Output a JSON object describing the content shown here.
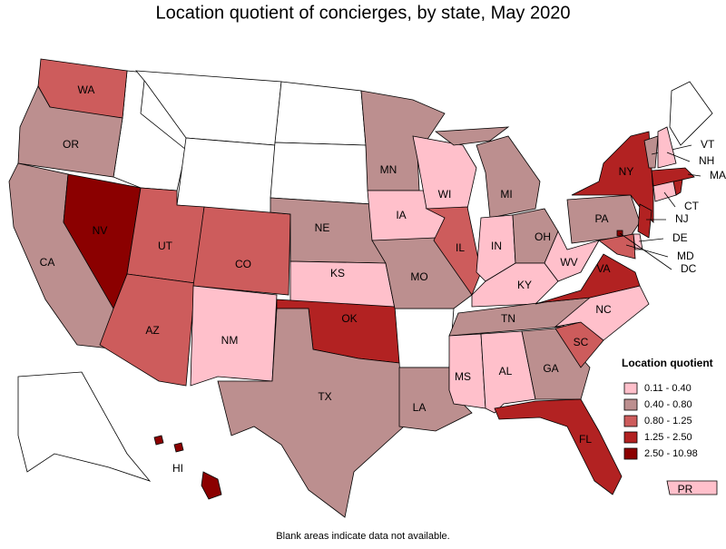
{
  "title": "Location quotient of concierges, by state, May 2020",
  "states": [
    {
      "abbr": "WA",
      "color": "#cd5c5c"
    },
    {
      "abbr": "OR",
      "color": "#bc8f8f"
    },
    {
      "abbr": "CA",
      "color": "#bc8f8f"
    },
    {
      "abbr": "NV",
      "color": "#8b0000"
    },
    {
      "abbr": "UT",
      "color": "#cd5c5c"
    },
    {
      "abbr": "AZ",
      "color": "#cd5c5c"
    },
    {
      "abbr": "CO",
      "color": "#cd5c5c"
    },
    {
      "abbr": "NM",
      "color": "#ffc0cb"
    },
    {
      "abbr": "NE",
      "color": "#bc8f8f"
    },
    {
      "abbr": "KS",
      "color": "#ffc0cb"
    },
    {
      "abbr": "OK",
      "color": "#b22222"
    },
    {
      "abbr": "TX",
      "color": "#bc8f8f"
    },
    {
      "abbr": "MN",
      "color": "#bc8f8f"
    },
    {
      "abbr": "IA",
      "color": "#ffc0cb"
    },
    {
      "abbr": "MO",
      "color": "#bc8f8f"
    },
    {
      "abbr": "LA",
      "color": "#bc8f8f"
    },
    {
      "abbr": "WI",
      "color": "#ffc0cb"
    },
    {
      "abbr": "IL",
      "color": "#cd5c5c"
    },
    {
      "abbr": "MI",
      "color": "#bc8f8f"
    },
    {
      "abbr": "IN",
      "color": "#ffc0cb"
    },
    {
      "abbr": "OH",
      "color": "#bc8f8f"
    },
    {
      "abbr": "KY",
      "color": "#ffc0cb"
    },
    {
      "abbr": "TN",
      "color": "#bc8f8f"
    },
    {
      "abbr": "MS",
      "color": "#ffc0cb"
    },
    {
      "abbr": "AL",
      "color": "#ffc0cb"
    },
    {
      "abbr": "GA",
      "color": "#bc8f8f"
    },
    {
      "abbr": "FL",
      "color": "#b22222"
    },
    {
      "abbr": "SC",
      "color": "#cd5c5c"
    },
    {
      "abbr": "NC",
      "color": "#ffc0cb"
    },
    {
      "abbr": "VA",
      "color": "#b22222"
    },
    {
      "abbr": "WV",
      "color": "#ffc0cb"
    },
    {
      "abbr": "PA",
      "color": "#bc8f8f"
    },
    {
      "abbr": "NY",
      "color": "#b22222"
    },
    {
      "abbr": "VT",
      "color": "#bc8f8f"
    },
    {
      "abbr": "NH",
      "color": "#ffc0cb"
    },
    {
      "abbr": "MA",
      "color": "#b22222"
    },
    {
      "abbr": "CT",
      "color": "#ffc0cb"
    },
    {
      "abbr": "NJ",
      "color": "#b22222"
    },
    {
      "abbr": "DE",
      "color": "#ffc0cb"
    },
    {
      "abbr": "MD",
      "color": "#cd5c5c"
    },
    {
      "abbr": "DC",
      "color": "#8b0000"
    },
    {
      "abbr": "HI",
      "color": "#8b0000"
    },
    {
      "abbr": "PR",
      "color": "#ffc0cb"
    }
  ],
  "legend": {
    "title": "Location quotient",
    "items": [
      {
        "label": "0.11 - 0.40",
        "color": "#ffc0cb"
      },
      {
        "label": "0.40 - 0.80",
        "color": "#bc8f8f"
      },
      {
        "label": "0.80 - 1.25",
        "color": "#cd5c5c"
      },
      {
        "label": "1.25 - 2.50",
        "color": "#b22222"
      },
      {
        "label": "2.50 - 10.98",
        "color": "#8b0000"
      }
    ]
  },
  "footnote": "Blank areas indicate data not available."
}
